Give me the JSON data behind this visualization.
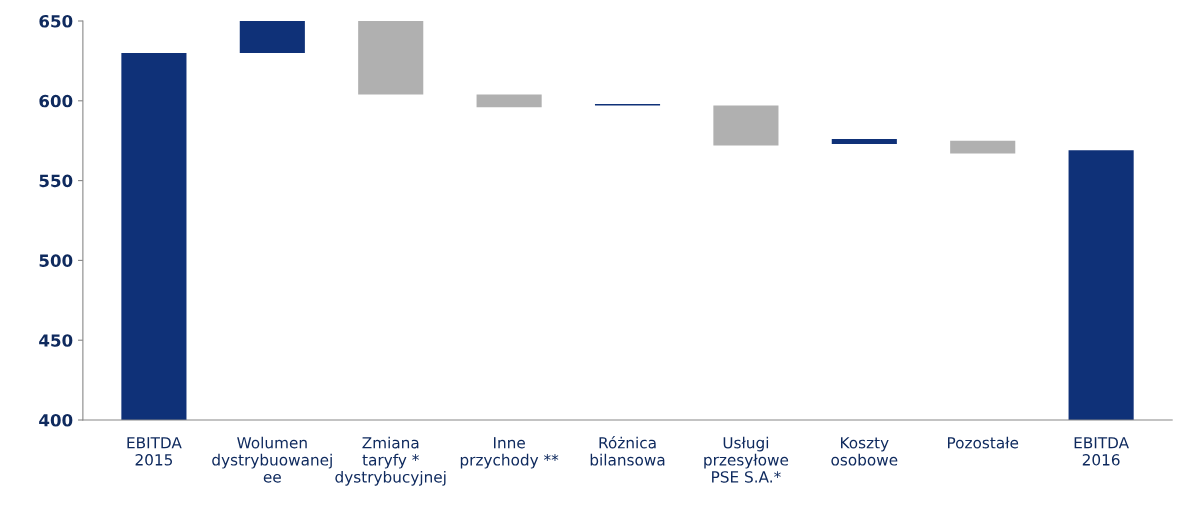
{
  "chart_data": {
    "type": "bar",
    "categories": [
      "EBITDA\n2015",
      "Wolumen\ndystrybuowanej\nee",
      "Zmiana\ntaryfy *\ndystrybucyjnej",
      "Inne\nprzychody **",
      "Różnica\nbilansowa",
      "Usługi\nprzesyłowe\nPSE S.A.*",
      "Koszty\nosobowe",
      "Pozostałe",
      "EBITDA\n2016"
    ],
    "values": [
      230,
      20,
      46,
      8,
      1,
      25,
      3,
      8,
      169
    ],
    "base": [
      400,
      630,
      604,
      596,
      597,
      572,
      573,
      567,
      400
    ],
    "colors": [
      "#0f3178",
      "#0f3178",
      "#b0b0b0",
      "#b0b0b0",
      "#0f3178",
      "#b0b0b0",
      "#0f3178",
      "#b0b0b0",
      "#0f3178"
    ],
    "ylim": [
      400,
      650
    ],
    "yticks": [
      400,
      450,
      500,
      550,
      600,
      650
    ],
    "grid": false
  }
}
